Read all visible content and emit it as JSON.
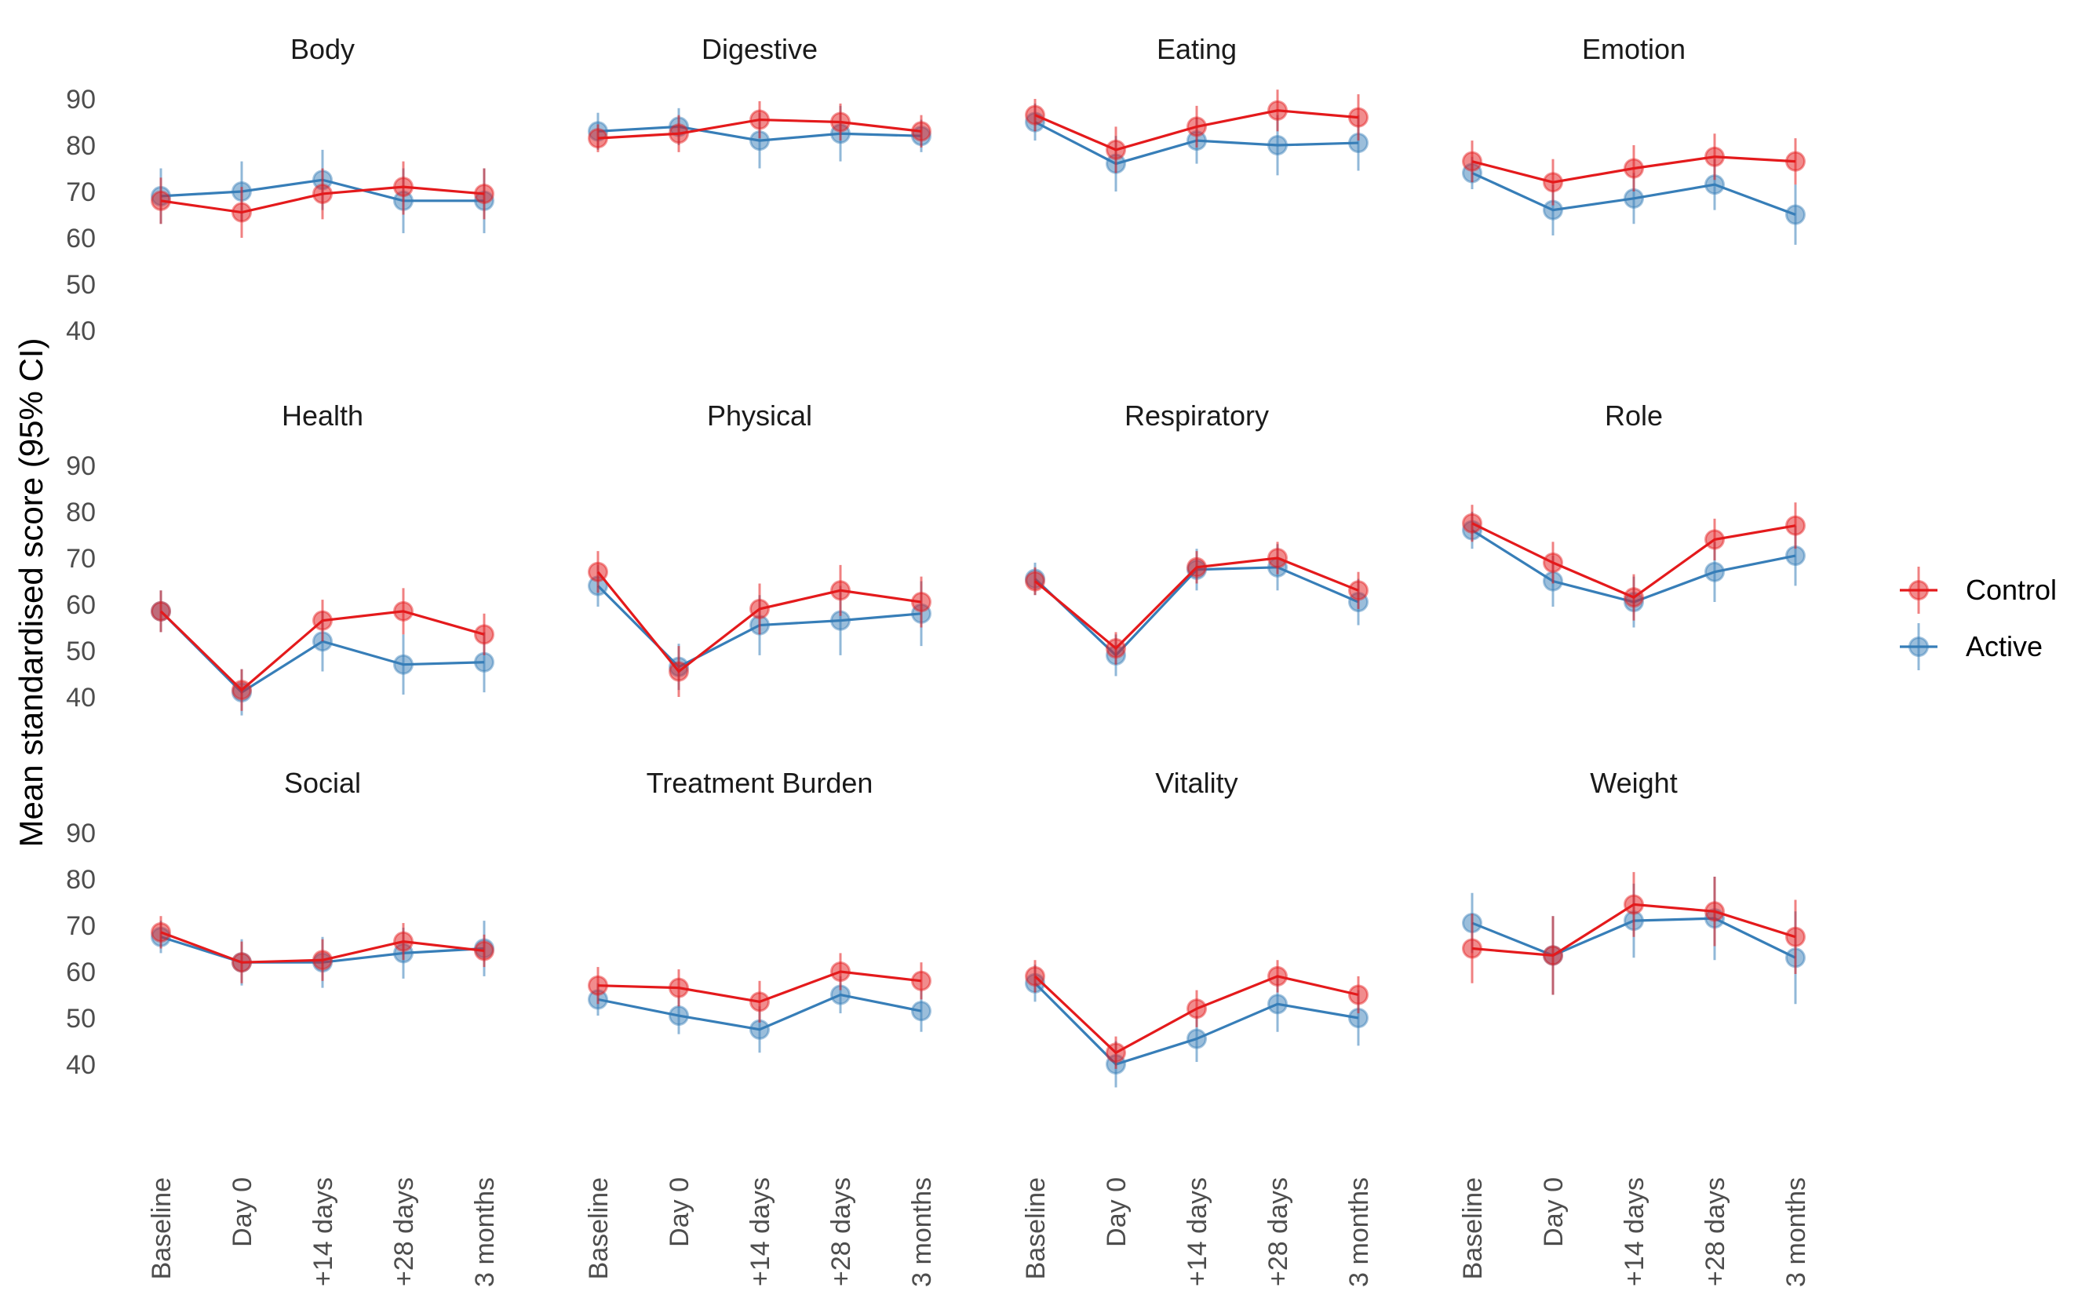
{
  "chart_data": {
    "type": "line",
    "ylabel": "Mean standardised score (95% CI)",
    "xlabel": "",
    "ylim": [
      40,
      90
    ],
    "yticks": [
      40,
      50,
      60,
      70,
      80,
      90
    ],
    "categories": [
      "Baseline",
      "Day 0",
      "+14 days",
      "+28 days",
      "3 months"
    ],
    "grid": false,
    "legend_position": "right",
    "legend": [
      {
        "name": "Control",
        "color": "#e41a1c"
      },
      {
        "name": "Active",
        "color": "#377eb8"
      }
    ],
    "panels": [
      {
        "title": "Body",
        "series": [
          {
            "name": "Control",
            "values": [
              68,
              65.5,
              69.5,
              71,
              69.5
            ],
            "lower": [
              63,
              60,
              64,
              65,
              64
            ],
            "upper": [
              73,
              71,
              75,
              76.5,
              75
            ]
          },
          {
            "name": "Active",
            "values": [
              69,
              70,
              72.5,
              68,
              68
            ],
            "lower": [
              63,
              63.5,
              66,
              61,
              61
            ],
            "upper": [
              75,
              76.5,
              79,
              75,
              75
            ]
          }
        ]
      },
      {
        "title": "Digestive",
        "series": [
          {
            "name": "Control",
            "values": [
              81.5,
              82.5,
              85.5,
              85,
              83
            ],
            "lower": [
              78.5,
              78.5,
              81.5,
              81,
              79.5
            ],
            "upper": [
              84.5,
              86.5,
              89.5,
              89,
              86.5
            ]
          },
          {
            "name": "Active",
            "values": [
              83,
              84,
              81,
              82.5,
              82
            ],
            "lower": [
              79,
              80,
              75,
              76.5,
              78.5
            ],
            "upper": [
              87,
              88,
              87,
              88.5,
              85.5
            ]
          }
        ]
      },
      {
        "title": "Eating",
        "series": [
          {
            "name": "Control",
            "values": [
              86.5,
              79,
              84,
              87.5,
              86
            ],
            "lower": [
              83,
              74,
              79.5,
              83,
              81
            ],
            "upper": [
              90,
              84,
              88.5,
              92,
              91
            ]
          },
          {
            "name": "Active",
            "values": [
              85,
              76,
              81,
              80,
              80.5
            ],
            "lower": [
              81,
              70,
              76,
              73.5,
              74.5
            ],
            "upper": [
              89,
              82,
              86,
              86.5,
              86.5
            ]
          }
        ]
      },
      {
        "title": "Emotion",
        "series": [
          {
            "name": "Control",
            "values": [
              76.5,
              72,
              75,
              77.5,
              76.5
            ],
            "lower": [
              72,
              67,
              70,
              72.5,
              71.5
            ],
            "upper": [
              81,
              77,
              80,
              82.5,
              81.5
            ]
          },
          {
            "name": "Active",
            "values": [
              74,
              66,
              68.5,
              71.5,
              65
            ],
            "lower": [
              70.5,
              60.5,
              63,
              66,
              58.5
            ],
            "upper": [
              77.5,
              71.5,
              74,
              77,
              71.5
            ]
          }
        ]
      },
      {
        "title": "Health",
        "series": [
          {
            "name": "Control",
            "values": [
              58.5,
              41.5,
              56.5,
              58.5,
              53.5
            ],
            "lower": [
              54,
              37,
              52,
              53.5,
              49
            ],
            "upper": [
              63,
              46,
              61,
              63.5,
              58
            ]
          },
          {
            "name": "Active",
            "values": [
              58.5,
              41,
              52,
              47,
              47.5
            ],
            "lower": [
              54,
              36,
              45.5,
              40.5,
              41
            ],
            "upper": [
              63,
              46,
              58.5,
              53.5,
              54
            ]
          }
        ]
      },
      {
        "title": "Physical",
        "series": [
          {
            "name": "Control",
            "values": [
              67,
              45.5,
              59,
              63,
              60.5
            ],
            "lower": [
              62.5,
              40,
              53.5,
              57.5,
              55
            ],
            "upper": [
              71.5,
              51,
              64.5,
              68.5,
              66
            ]
          },
          {
            "name": "Active",
            "values": [
              64,
              46.5,
              55.5,
              56.5,
              58
            ],
            "lower": [
              59.5,
              41.5,
              49,
              49,
              51
            ],
            "upper": [
              68.5,
              51.5,
              62,
              64,
              65
            ]
          }
        ]
      },
      {
        "title": "Respiratory",
        "series": [
          {
            "name": "Control",
            "values": [
              65,
              50.5,
              68,
              70,
              63
            ],
            "lower": [
              62,
              47,
              64.5,
              66.5,
              59
            ],
            "upper": [
              68,
              54,
              71.5,
              73.5,
              67
            ]
          },
          {
            "name": "Active",
            "values": [
              65.5,
              49,
              67.5,
              68,
              60.5
            ],
            "lower": [
              62,
              44.5,
              63,
              63,
              55.5
            ],
            "upper": [
              69,
              53.5,
              72,
              73,
              65.5
            ]
          }
        ]
      },
      {
        "title": "Role",
        "series": [
          {
            "name": "Control",
            "values": [
              77.5,
              69,
              61.5,
              74,
              77
            ],
            "lower": [
              73.5,
              64.5,
              56.5,
              69.5,
              72
            ],
            "upper": [
              81.5,
              73.5,
              66.5,
              78.5,
              82
            ]
          },
          {
            "name": "Active",
            "values": [
              76,
              65,
              60.5,
              67,
              70.5
            ],
            "lower": [
              72,
              59.5,
              55,
              60.5,
              64
            ],
            "upper": [
              80,
              70.5,
              66,
              73.5,
              77
            ]
          }
        ]
      },
      {
        "title": "Social",
        "series": [
          {
            "name": "Control",
            "values": [
              68.5,
              62,
              62.5,
              66.5,
              64.5
            ],
            "lower": [
              65,
              57.5,
              58,
              62.5,
              61
            ],
            "upper": [
              72,
              66.5,
              67,
              70.5,
              68
            ]
          },
          {
            "name": "Active",
            "values": [
              67.5,
              62,
              62,
              64,
              65
            ],
            "lower": [
              64,
              57,
              56.5,
              58.5,
              59
            ],
            "upper": [
              71,
              67,
              67.5,
              69.5,
              71
            ]
          }
        ]
      },
      {
        "title": "Treatment Burden",
        "series": [
          {
            "name": "Control",
            "values": [
              57,
              56.5,
              53.5,
              60,
              58
            ],
            "lower": [
              53,
              52.5,
              49,
              56,
              54
            ],
            "upper": [
              61,
              60.5,
              58,
              64,
              62
            ]
          },
          {
            "name": "Active",
            "values": [
              54,
              50.5,
              47.5,
              55,
              51.5
            ],
            "lower": [
              50.5,
              46.5,
              42.5,
              51,
              47
            ],
            "upper": [
              57.5,
              54.5,
              52.5,
              59,
              56
            ]
          }
        ]
      },
      {
        "title": "Vitality",
        "series": [
          {
            "name": "Control",
            "values": [
              59,
              42.5,
              52,
              59,
              55
            ],
            "lower": [
              55.5,
              39,
              48,
              55.5,
              51
            ],
            "upper": [
              62.5,
              46,
              56,
              62.5,
              59
            ]
          },
          {
            "name": "Active",
            "values": [
              57.5,
              40,
              45.5,
              53,
              50
            ],
            "lower": [
              53.5,
              35,
              40.5,
              47,
              44
            ],
            "upper": [
              61.5,
              45,
              50.5,
              59,
              56
            ]
          }
        ]
      },
      {
        "title": "Weight",
        "series": [
          {
            "name": "Control",
            "values": [
              65,
              63.5,
              74.5,
              73,
              67.5
            ],
            "lower": [
              57.5,
              55,
              67.5,
              65.5,
              59.5
            ],
            "upper": [
              72.5,
              72,
              81.5,
              80.5,
              75.5
            ]
          },
          {
            "name": "Active",
            "values": [
              70.5,
              63.5,
              71,
              71.5,
              63
            ],
            "lower": [
              64,
              55,
              63,
              62.5,
              53
            ],
            "upper": [
              77,
              72,
              79,
              80.5,
              73
            ]
          }
        ]
      }
    ]
  }
}
